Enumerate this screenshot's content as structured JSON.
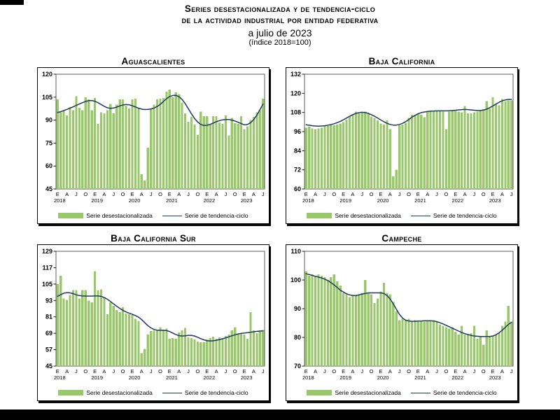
{
  "header": {
    "title_line1": "Series desestacionalizada y de tendencia-ciclo",
    "title_line2": "de la actividad industrial por entidad federativa",
    "subtitle": "a julio de 2023",
    "index_note": "(índice 2018=100)"
  },
  "legend": {
    "bars_label": "Serie desestacionalizada",
    "line_label": "Serie de tendencia-ciclo"
  },
  "colors": {
    "bar_fill": "#98c869",
    "trend_line": "#1f3a5f",
    "plot_frame": "#4d4d4d",
    "axis_text": "#000000"
  },
  "x_axis": {
    "month_tick_labels": [
      "E",
      "A",
      "J",
      "O"
    ],
    "years": [
      "2018",
      "2019",
      "2020",
      "2021",
      "2022",
      "2023"
    ],
    "coverage": "monthly, enero 2018 a julio 2023"
  },
  "chart_data": [
    {
      "type": "bar",
      "title": "Aguascalientes",
      "ylim": [
        45,
        120
      ],
      "y_ticks": [
        120,
        105,
        90,
        75,
        60,
        45
      ],
      "series": [
        {
          "name": "Serie desestacionalizada",
          "values": [
            103.5,
            95,
            96.5,
            93,
            98.5,
            96.5,
            105.5,
            98,
            96.5,
            105,
            103.5,
            96.5,
            104.5,
            87.5,
            95,
            94.5,
            96.5,
            100.5,
            94.5,
            100,
            103.5,
            103.5,
            99.5,
            97.5,
            103.5,
            104,
            97.5,
            54.5,
            50.5,
            72,
            97.5,
            100,
            103.5,
            104,
            104.5,
            108.5,
            110,
            105,
            108,
            107,
            101.5,
            94.5,
            89,
            92,
            87,
            80.5,
            95.5,
            92.5,
            92.5,
            87,
            92.5,
            92.5,
            88.5,
            87.5,
            93,
            80,
            91.5,
            88,
            87.5,
            92.5,
            84,
            86,
            90,
            92,
            95,
            96.5,
            104
          ]
        },
        {
          "name": "Serie de tendencia-ciclo",
          "values": [
            95,
            95.5,
            96.2,
            97,
            97.8,
            98.7,
            99.6,
            100.5,
            101.4,
            102.2,
            102.7,
            102.8,
            102.3,
            101.4,
            100.2,
            99,
            98.1,
            97.7,
            97.9,
            98.5,
            99.3,
            99.9,
            100.2,
            100,
            99.4,
            98.6,
            97.8,
            97.2,
            96.9,
            97,
            97.3,
            97.9,
            98.9,
            100.3,
            102.1,
            104,
            105.4,
            106.1,
            106.2,
            105.3,
            103.5,
            100.8,
            97.5,
            94.1,
            91.1,
            88.7,
            87.2,
            86.5,
            86.6,
            87.2,
            88.1,
            89,
            89.7,
            90.2,
            90.4,
            90.4,
            90,
            89.4,
            88.6,
            87.7,
            86.9,
            87.1,
            88.3,
            90.3,
            93.2,
            96.8,
            100.5
          ]
        }
      ]
    },
    {
      "type": "bar",
      "title": "Baja California",
      "ylim": [
        60,
        132
      ],
      "y_ticks": [
        132,
        120,
        108,
        96,
        84,
        72,
        60
      ],
      "series": [
        {
          "name": "Serie desestacionalizada",
          "values": [
            98.5,
            99,
            98,
            97.5,
            98,
            98.5,
            99.5,
            99.5,
            100,
            100,
            100.5,
            101,
            102,
            103.5,
            105.5,
            107,
            108.5,
            107.5,
            108,
            108.5,
            107,
            105.5,
            104.5,
            103,
            101,
            100.5,
            103,
            97.5,
            68,
            72,
            100,
            100.5,
            101.5,
            104.5,
            106.5,
            106.5,
            107.5,
            106.5,
            105,
            108.5,
            108.5,
            109,
            109.5,
            109,
            108.5,
            97.5,
            108.5,
            109,
            109,
            108.5,
            108,
            112,
            107.5,
            107.5,
            108,
            108.5,
            109,
            110,
            115,
            110.5,
            117.5,
            113.5,
            112.5,
            116.5,
            115,
            115.5,
            115.5
          ]
        },
        {
          "name": "Serie de tendencia-ciclo",
          "values": [
            100.3,
            100,
            99.7,
            99.5,
            99.4,
            99.5,
            99.7,
            100,
            100.4,
            100.9,
            101.6,
            102.4,
            103.4,
            104.5,
            105.6,
            106.6,
            107.4,
            107.9,
            108.1,
            107.9,
            107.4,
            106.6,
            105.6,
            104.5,
            103.3,
            102.2,
            101.2,
            100.5,
            100.1,
            100.1,
            100.5,
            101.2,
            102.3,
            103.6,
            105,
            106.2,
            107.2,
            107.9,
            108.3,
            108.6,
            108.8,
            108.9,
            109,
            109,
            109,
            109,
            109.1,
            109.2,
            109.4,
            109.6,
            109.8,
            109.9,
            109.8,
            109.6,
            109.4,
            109.2,
            109.2,
            109.5,
            110.1,
            111,
            112.1,
            113.3,
            114.4,
            115.3,
            115.9,
            116.2,
            116.2
          ]
        }
      ]
    },
    {
      "type": "bar",
      "title": "Baja California Sur",
      "ylim": [
        45,
        129
      ],
      "y_ticks": [
        129,
        117,
        105,
        93,
        81,
        69,
        57,
        45
      ],
      "series": [
        {
          "name": "Serie desestacionalizada",
          "values": [
            105,
            111,
            94.5,
            93.5,
            97,
            100.5,
            100.5,
            94.5,
            100.5,
            100.5,
            93,
            91.5,
            114.5,
            100.5,
            101,
            95.5,
            83,
            91.5,
            89,
            86,
            84.5,
            88,
            83.5,
            83,
            82.5,
            79.5,
            78,
            54.5,
            57.5,
            68,
            70.5,
            71,
            71.5,
            73.5,
            71,
            72.5,
            65,
            65.5,
            65,
            69.5,
            71,
            73,
            66,
            65.5,
            64.5,
            63,
            62.5,
            62.5,
            64.5,
            65.5,
            66.5,
            65,
            66,
            65.5,
            67,
            68,
            71,
            73.5,
            68.5,
            68.5,
            68,
            65,
            84.5,
            71,
            69,
            71,
            71.5
          ]
        },
        {
          "name": "Serie de tendencia-ciclo",
          "values": [
            96,
            97.3,
            98.3,
            98.8,
            98.6,
            98,
            97.2,
            96.6,
            96.3,
            96.2,
            96.2,
            96.2,
            96.3,
            96.3,
            96,
            95.2,
            93.9,
            92.3,
            90.5,
            88.8,
            87.2,
            85.8,
            84.6,
            83.7,
            82.9,
            82,
            80.8,
            79,
            76.8,
            74.6,
            72.9,
            71.8,
            71.3,
            71.2,
            71.2,
            71,
            70.3,
            69.2,
            68.1,
            67.3,
            67,
            67.2,
            67.5,
            67.5,
            67,
            66.1,
            65.1,
            64.2,
            63.6,
            63.4,
            63.5,
            63.9,
            64.4,
            65,
            65.7,
            66.4,
            67.2,
            67.9,
            68.5,
            68.9,
            69.2,
            69.5,
            69.8,
            70.1,
            70.4,
            70.6,
            70.8
          ]
        }
      ]
    },
    {
      "type": "bar",
      "title": "Campeche",
      "ylim": [
        70,
        110
      ],
      "y_ticks": [
        110,
        100,
        90,
        80,
        70
      ],
      "series": [
        {
          "name": "Serie desestacionalizada",
          "values": [
            103,
            101.5,
            102,
            101.5,
            102,
            101.5,
            101,
            100,
            101,
            102,
            99.5,
            98,
            95.5,
            95,
            94,
            94.5,
            94.5,
            95,
            95.5,
            100,
            95.5,
            95,
            92,
            93.5,
            96,
            99,
            95.5,
            95,
            92.5,
            89,
            86,
            86.5,
            86,
            86.5,
            85.5,
            86,
            85.5,
            85.5,
            85.5,
            86,
            86,
            86,
            85.5,
            84.5,
            84,
            83.5,
            83,
            83.5,
            82,
            81,
            84,
            81,
            81,
            81.5,
            84,
            79.5,
            80.5,
            77.5,
            82.5,
            80.5,
            80.5,
            81,
            81.5,
            84,
            85.5,
            91,
            85.5
          ]
        },
        {
          "name": "Serie de tendencia-ciclo",
          "values": [
            102.2,
            101.9,
            101.6,
            101.3,
            101,
            100.7,
            100.3,
            99.8,
            99.1,
            98.3,
            97.4,
            96.5,
            95.8,
            95.2,
            94.8,
            94.6,
            94.6,
            94.8,
            95.1,
            95.3,
            95.5,
            95.5,
            95.5,
            95.5,
            95.5,
            95.3,
            94.6,
            93.4,
            91.7,
            89.8,
            88,
            86.7,
            86,
            85.7,
            85.6,
            85.6,
            85.7,
            85.7,
            85.8,
            85.8,
            85.8,
            85.7,
            85.5,
            85.1,
            84.7,
            84.2,
            83.7,
            83.2,
            82.7,
            82.2,
            81.7,
            81.3,
            81,
            80.7,
            80.5,
            80.4,
            80.3,
            80.3,
            80.3,
            80.3,
            80.5,
            80.9,
            81.6,
            82.5,
            83.5,
            84.5,
            85.3
          ]
        }
      ]
    }
  ]
}
